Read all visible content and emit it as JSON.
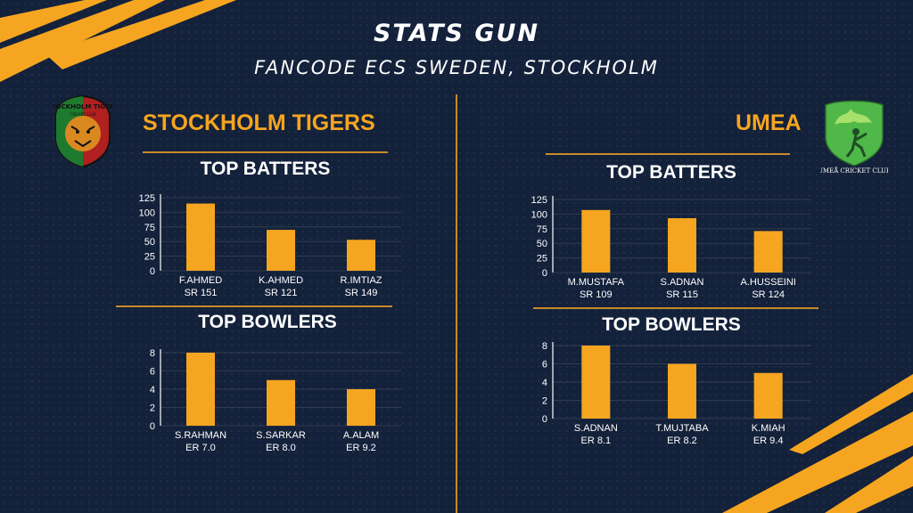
{
  "header": {
    "title": "STATS GUN",
    "subtitle": "FANCODE ECS SWEDEN, STOCKHOLM"
  },
  "colors": {
    "accent": "#f6a520",
    "background": "#13213a",
    "rule": "#c98a2a"
  },
  "teams": [
    {
      "name": "STOCKHOLM TIGERS",
      "logo_text": "STOCKHOLM TIGERS",
      "logo_subtext": "CRICKET CLUB",
      "batters_title": "TOP BATTERS",
      "bowlers_title": "TOP BOWLERS"
    },
    {
      "name": "UMEA",
      "logo_text": "UMEÅ CRICKET CLUB",
      "batters_title": "TOP BATTERS",
      "bowlers_title": "TOP BOWLERS"
    }
  ],
  "chart_data": [
    {
      "type": "bar",
      "title": "TOP BATTERS",
      "categories": [
        "F.AHMED",
        "K.AHMED",
        "R.IMTIAZ"
      ],
      "sublabels": [
        "SR 151",
        "SR 121",
        "SR 149"
      ],
      "values": [
        115,
        70,
        53
      ],
      "yticks": [
        0,
        25,
        50,
        75,
        100,
        125
      ],
      "ylim": [
        0,
        125
      ],
      "grid": true
    },
    {
      "type": "bar",
      "title": "TOP BOWLERS",
      "categories": [
        "S.RAHMAN",
        "S.SARKAR",
        "A.ALAM"
      ],
      "sublabels": [
        "ER 7.0",
        "ER 8.0",
        "ER 9.2"
      ],
      "values": [
        8,
        5,
        4
      ],
      "yticks": [
        0,
        2,
        4,
        6,
        8
      ],
      "ylim": [
        0,
        8
      ],
      "grid": true
    },
    {
      "type": "bar",
      "title": "TOP BATTERS",
      "categories": [
        "M.MUSTAFA",
        "S.ADNAN",
        "A.HUSSEINI"
      ],
      "sublabels": [
        "SR 109",
        "SR 115",
        "SR 124"
      ],
      "values": [
        107,
        93,
        71
      ],
      "yticks": [
        0,
        25,
        50,
        75,
        100,
        125
      ],
      "ylim": [
        0,
        125
      ],
      "grid": true
    },
    {
      "type": "bar",
      "title": "TOP BOWLERS",
      "categories": [
        "S.ADNAN",
        "T.MUJTABA",
        "K.MIAH"
      ],
      "sublabels": [
        "ER 8.1",
        "ER 8.2",
        "ER 9.4"
      ],
      "values": [
        8,
        6,
        5
      ],
      "yticks": [
        0,
        2,
        4,
        6,
        8
      ],
      "ylim": [
        0,
        8
      ],
      "grid": true
    }
  ]
}
